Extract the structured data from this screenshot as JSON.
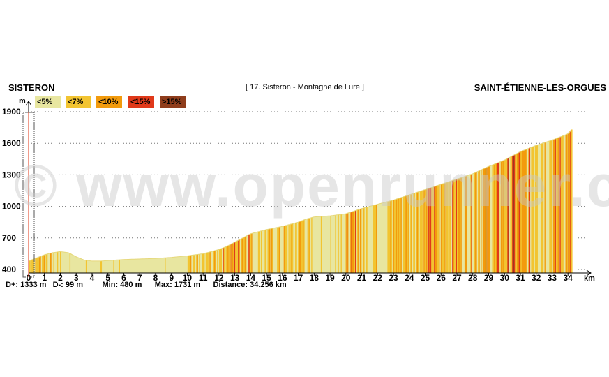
{
  "header": {
    "start_location": "SISTERON",
    "end_location": "SAINT-ÉTIENNE-LES-ORGUES",
    "profile_title": "[ 17. Sisteron - Montagne de Lure ]"
  },
  "legend": [
    {
      "label": "<5%",
      "color": "#e8e6a0"
    },
    {
      "label": "<7%",
      "color": "#f2c431"
    },
    {
      "label": "<10%",
      "color": "#f29b0d"
    },
    {
      "label": "<15%",
      "color": "#e0391a"
    },
    {
      "label": ">15%",
      "color": "#8f3d1c"
    }
  ],
  "stats": {
    "dplus_label": "D+:",
    "dplus": "1333 m",
    "dminus_label": "D-:",
    "dminus": "99 m",
    "min_label": "Min:",
    "min": "480 m",
    "max_label": "Max:",
    "max": "1731 m",
    "distance_label": "Distance:",
    "distance": "34.256 km"
  },
  "watermark": "© www.openrunner.com",
  "chart_data": {
    "type": "area",
    "ylabel": "m",
    "xlabel": "km",
    "xlim": [
      0,
      34.256
    ],
    "ylim": [
      400,
      1900
    ],
    "y_ticks": [
      400,
      700,
      1000,
      1300,
      1600,
      1900
    ],
    "x_ticks": [
      0,
      1,
      2,
      3,
      4,
      5,
      6,
      7,
      8,
      9,
      10,
      11,
      12,
      13,
      14,
      15,
      16,
      17,
      18,
      19,
      20,
      21,
      22,
      23,
      24,
      25,
      26,
      27,
      28,
      29,
      30,
      31,
      32,
      33,
      34
    ],
    "grid": "horizontal-dotted",
    "legend_position": "top-left",
    "x": [
      0,
      0.5,
      1,
      1.5,
      2,
      2.5,
      3,
      3.5,
      4,
      4.5,
      5,
      6,
      7,
      8,
      9,
      10,
      11,
      12,
      12.5,
      13,
      13.5,
      14,
      14.5,
      15,
      16,
      17,
      17.5,
      18,
      19,
      20,
      21,
      22,
      23,
      24,
      25,
      26,
      27,
      28,
      29,
      30,
      31,
      32,
      33,
      34,
      34.256
    ],
    "y": [
      480,
      510,
      540,
      560,
      570,
      560,
      520,
      490,
      480,
      480,
      485,
      495,
      500,
      505,
      515,
      530,
      550,
      590,
      620,
      660,
      700,
      740,
      760,
      780,
      810,
      850,
      880,
      900,
      910,
      930,
      980,
      1020,
      1060,
      1110,
      1160,
      1210,
      1260,
      1310,
      1380,
      1440,
      1520,
      1580,
      1630,
      1690,
      1731
    ],
    "gradient_bands_note": "colors encode slope classes per legend"
  }
}
